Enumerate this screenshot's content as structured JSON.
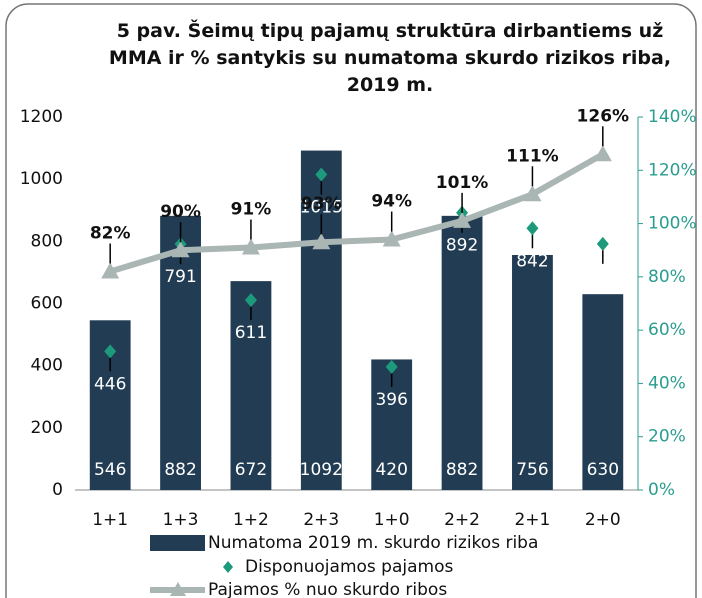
{
  "chart_data": {
    "type": "bar-line",
    "title": "5 pav. Šeimų tipų pajamų struktūra dirbantiems už MMA ir % santykis su numatoma skurdo rizikos riba, 2019 m.",
    "categories": [
      "1+1",
      "1+3",
      "1+2",
      "2+3",
      "1+0",
      "2+2",
      "2+1",
      "2+0"
    ],
    "series": [
      {
        "name": "Numatoma 2019 m. skurdo rizikos riba",
        "kind": "bar",
        "color": "#213c53",
        "values": [
          546,
          882,
          672,
          1092,
          420,
          882,
          756,
          630
        ]
      },
      {
        "name": "Disponuojamos pajamos",
        "kind": "scatter",
        "color": "#1d9a7c",
        "values": [
          446,
          791,
          611,
          1015,
          396,
          892,
          842,
          792
        ]
      },
      {
        "name": "Pajamos % nuo skurdo ribos",
        "kind": "line",
        "axis": "y2",
        "color": "#aab6b4",
        "values": [
          82,
          90,
          91,
          93,
          94,
          101,
          111,
          126
        ],
        "value_labels": [
          "82%",
          "90%",
          "91%",
          "93%",
          "94%",
          "101%",
          "111%",
          "126%"
        ]
      }
    ],
    "ylim": [
      0,
      1200
    ],
    "yticks": [
      0,
      200,
      400,
      600,
      800,
      1000,
      1200
    ],
    "y2lim": [
      0,
      140
    ],
    "y2ticks": [
      {
        "value": 0,
        "label": "0%"
      },
      {
        "value": 20,
        "label": "20%"
      },
      {
        "value": 40,
        "label": "40%"
      },
      {
        "value": 60,
        "label": "60%"
      },
      {
        "value": 80,
        "label": "80%"
      },
      {
        "value": 100,
        "label": "100%"
      },
      {
        "value": 120,
        "label": "120%"
      },
      {
        "value": 140,
        "label": "140%"
      }
    ],
    "grid": false,
    "legend": "bottom"
  }
}
